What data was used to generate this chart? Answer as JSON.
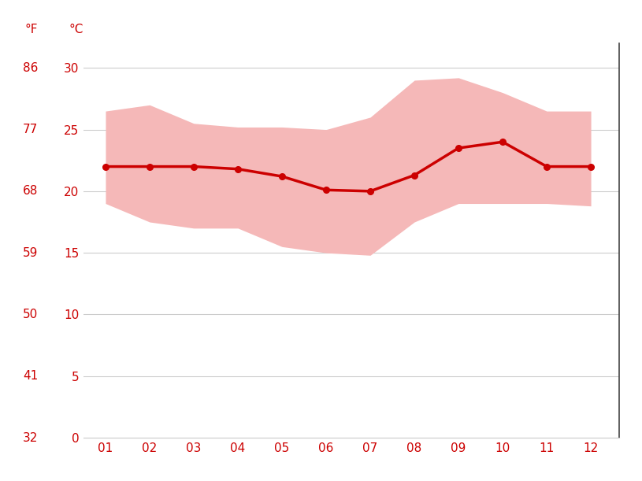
{
  "months": [
    1,
    2,
    3,
    4,
    5,
    6,
    7,
    8,
    9,
    10,
    11,
    12
  ],
  "month_labels": [
    "01",
    "02",
    "03",
    "04",
    "05",
    "06",
    "07",
    "08",
    "09",
    "10",
    "11",
    "12"
  ],
  "mean_temp": [
    22.0,
    22.0,
    22.0,
    21.8,
    21.2,
    20.1,
    20.0,
    21.3,
    23.5,
    24.0,
    22.0,
    22.0
  ],
  "upper_temp": [
    26.5,
    27.0,
    25.5,
    25.2,
    25.2,
    25.0,
    26.0,
    29.0,
    29.2,
    28.0,
    26.5,
    26.5
  ],
  "lower_temp": [
    19.0,
    17.5,
    17.0,
    17.0,
    15.5,
    15.0,
    14.8,
    17.5,
    19.0,
    19.0,
    19.0,
    18.8
  ],
  "band_color": "#f5b8b8",
  "line_color": "#cc0000",
  "dot_color": "#cc0000",
  "grid_color": "#cccccc",
  "text_color": "#cc0000",
  "bg_color": "#ffffff",
  "yticks_c": [
    0,
    5,
    10,
    15,
    20,
    25,
    30
  ],
  "yticks_f": [
    32,
    41,
    50,
    59,
    68,
    77,
    86
  ],
  "ylabel_c": "°C",
  "ylabel_f": "°F",
  "ylim": [
    0,
    32
  ],
  "xlim_left": 0.5,
  "xlim_right": 12.65
}
